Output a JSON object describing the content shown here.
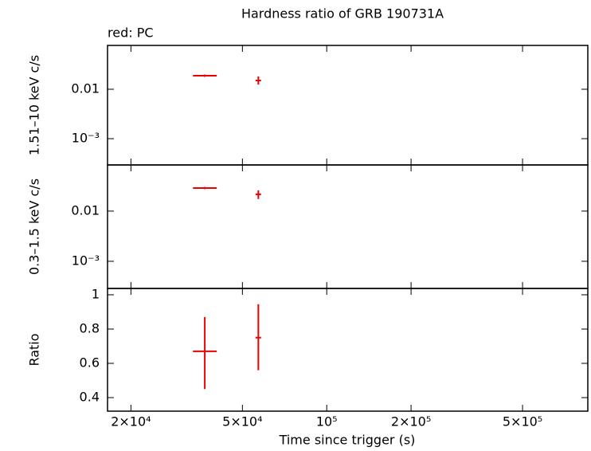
{
  "chart_data": [
    {
      "type": "errorbar",
      "title": "Hardness ratio of GRB 190731A",
      "subtitle": "red: PC",
      "ylabel": "1.51–10 keV c/s",
      "log_x": true,
      "log_y": true,
      "xlim": [
        16500,
        855000
      ],
      "ylim": [
        0.000294,
        0.077
      ],
      "yticks": [
        {
          "value": 0.01,
          "label": "0.01"
        },
        {
          "value": 0.001,
          "label": "10⁻³"
        }
      ],
      "series": [
        {
          "color": "#ee0000",
          "x": [
            36700,
            57000
          ],
          "xlo": [
            33300,
            55700
          ],
          "xhi": [
            40500,
            58300
          ],
          "values": [
            0.0188,
            0.015
          ],
          "ylo": [
            0.0178,
            0.0124
          ],
          "yhi": [
            0.0198,
            0.0181
          ]
        }
      ]
    },
    {
      "type": "errorbar",
      "ylabel": "0.3–1.5 keV c/s",
      "log_x": true,
      "log_y": true,
      "xlim": [
        16500,
        855000
      ],
      "ylim": [
        0.000288,
        0.083
      ],
      "yticks": [
        {
          "value": 0.01,
          "label": "0.01"
        },
        {
          "value": 0.001,
          "label": "10⁻³"
        }
      ],
      "series": [
        {
          "color": "#ee0000",
          "x": [
            36700,
            57000
          ],
          "xlo": [
            33300,
            55700
          ],
          "xhi": [
            40500,
            58300
          ],
          "values": [
            0.0288,
            0.0216
          ],
          "ylo": [
            0.0274,
            0.0174
          ],
          "yhi": [
            0.0302,
            0.0259
          ]
        }
      ]
    },
    {
      "type": "errorbar",
      "ylabel": "Ratio",
      "xlabel": "Time since trigger (s)",
      "log_x": true,
      "log_y": false,
      "xlim": [
        16500,
        855000
      ],
      "ylim": [
        0.321,
        1.037
      ],
      "xticks": [
        {
          "value": 20000,
          "label": "2×10⁴"
        },
        {
          "value": 50000,
          "label": "5×10⁴"
        },
        {
          "value": 100000,
          "label": "10⁵"
        },
        {
          "value": 200000,
          "label": "2×10⁵"
        },
        {
          "value": 500000,
          "label": "5×10⁵"
        }
      ],
      "yticks": [
        0.4,
        0.6,
        0.8,
        1
      ],
      "series": [
        {
          "color": "#ee0000",
          "x": [
            36700,
            57000
          ],
          "xlo": [
            33300,
            55700
          ],
          "xhi": [
            40500,
            58300
          ],
          "values": [
            0.67,
            0.75
          ],
          "ylo": [
            0.45,
            0.56
          ],
          "yhi": [
            0.87,
            0.945
          ]
        }
      ]
    }
  ]
}
